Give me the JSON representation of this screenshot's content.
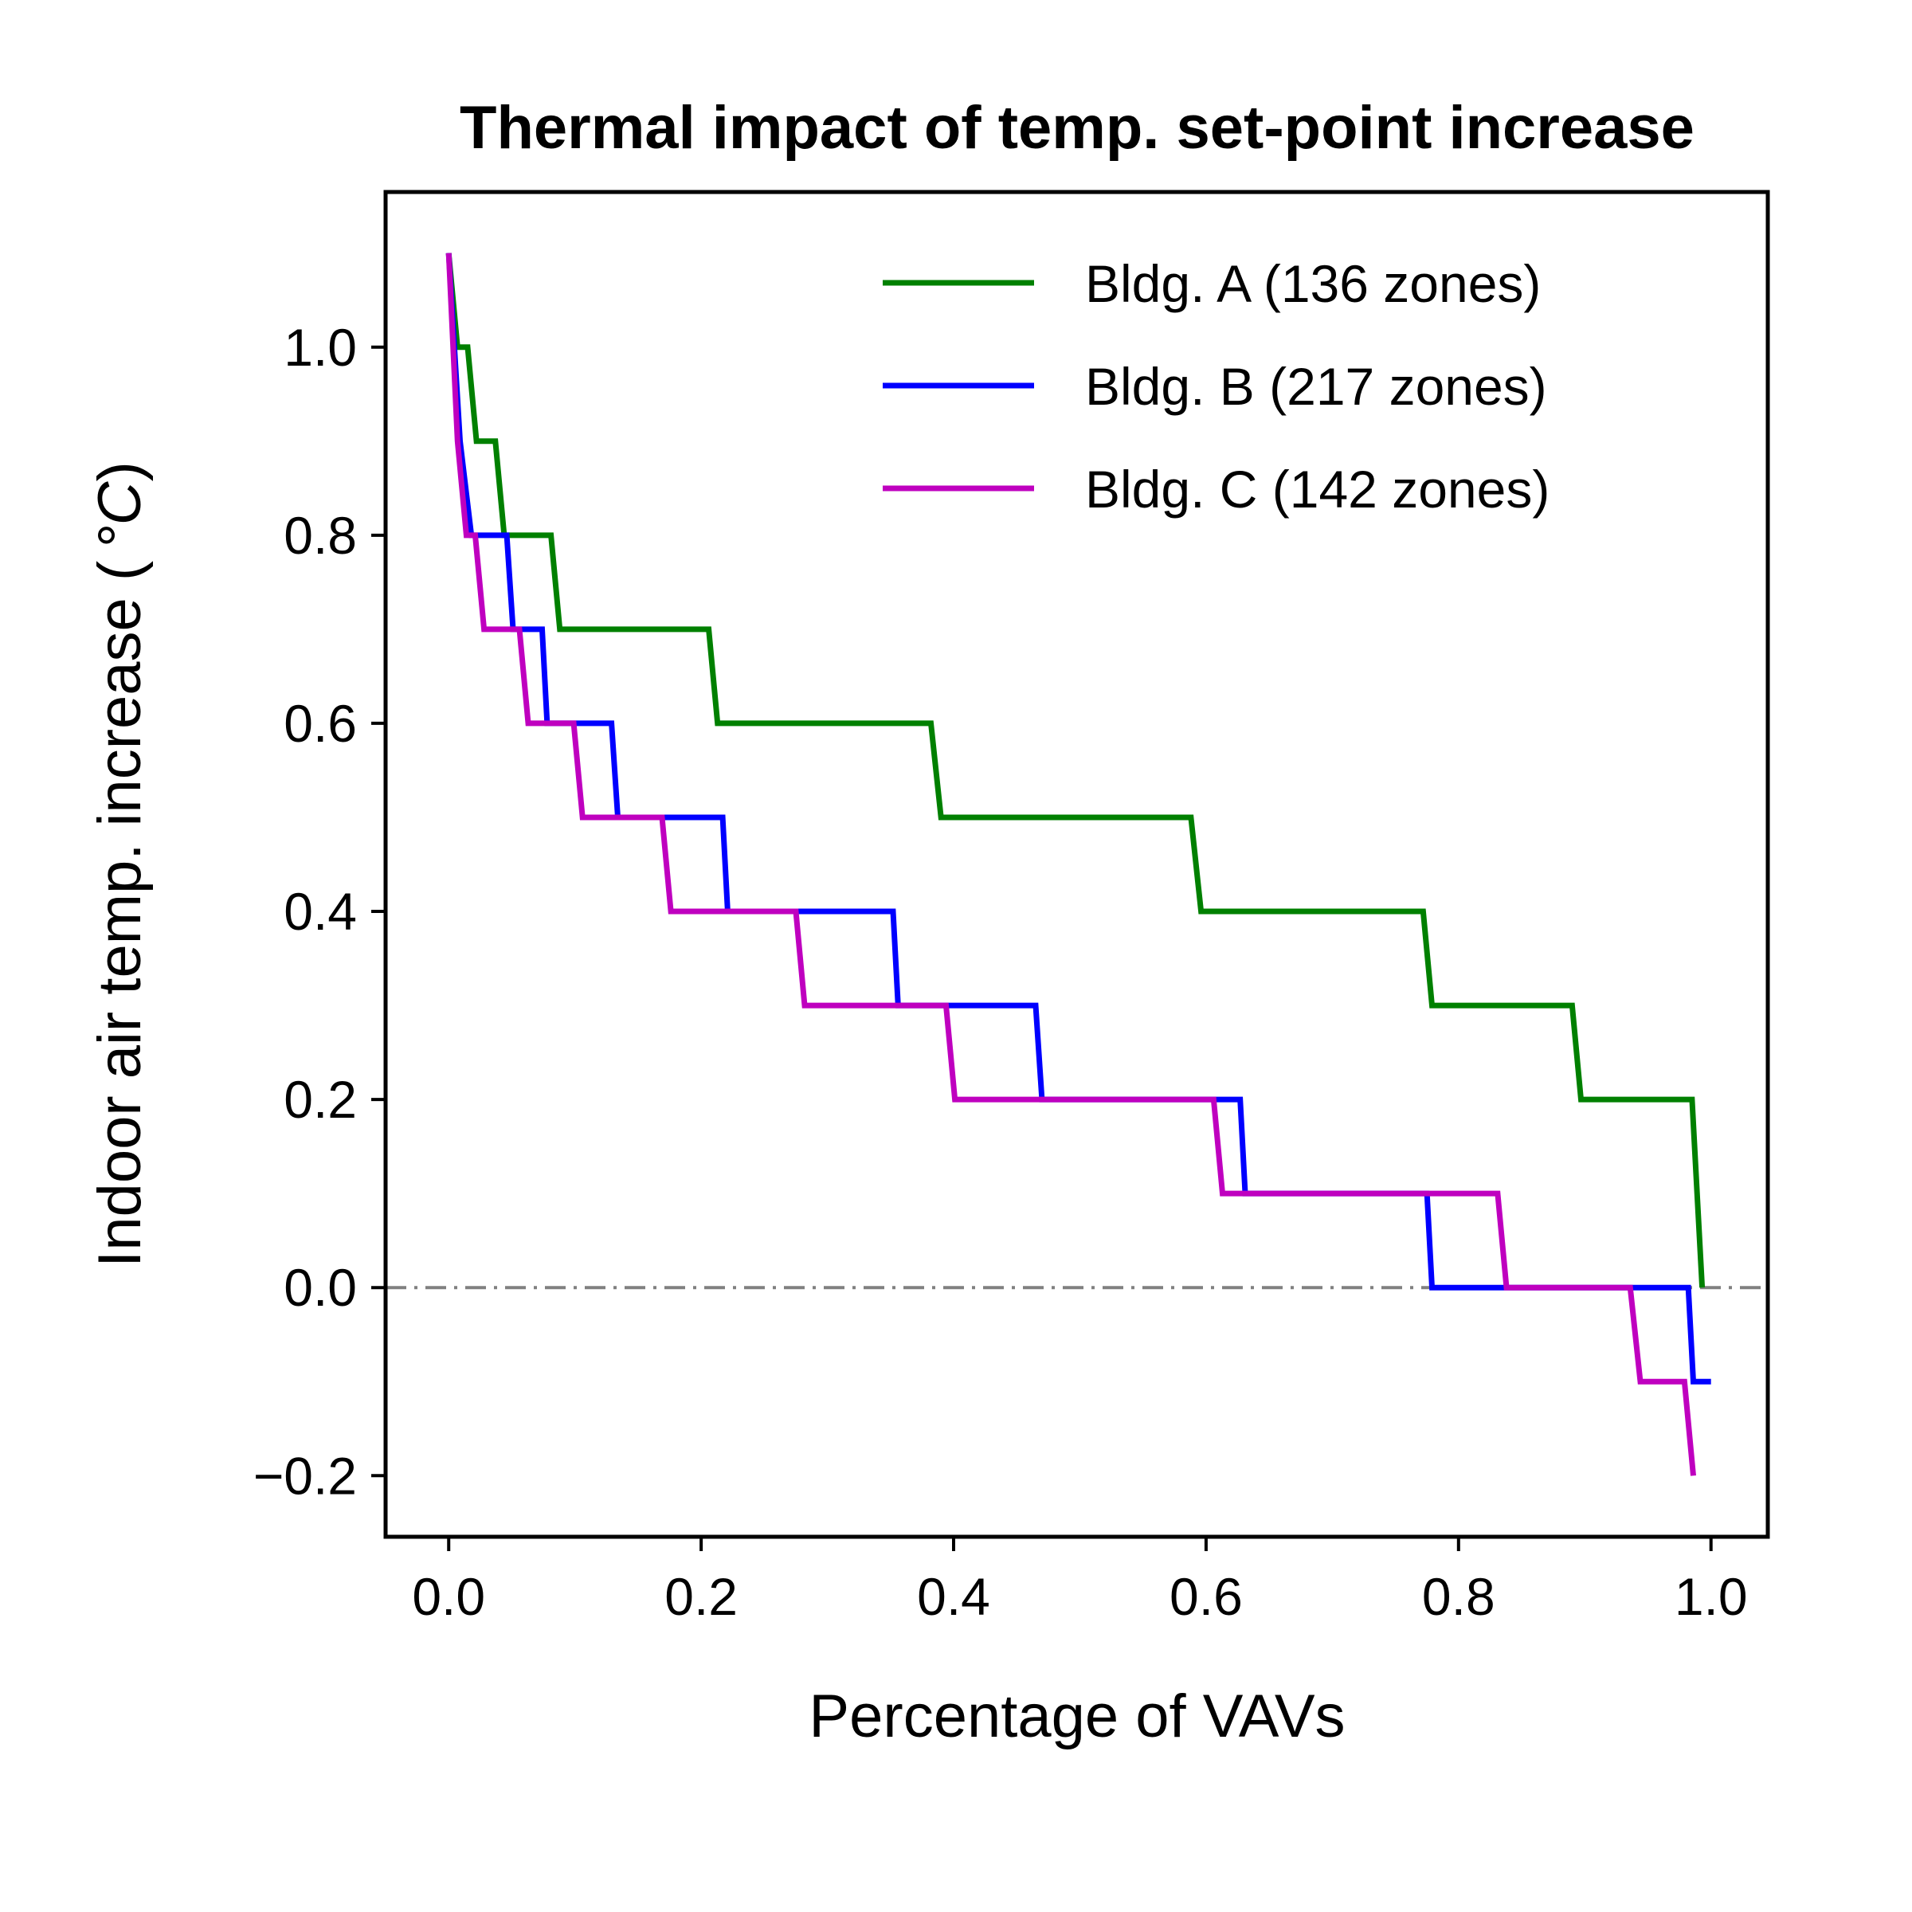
{
  "chart_data": {
    "type": "line",
    "step": true,
    "title": "Thermal impact of temp. set-point increase",
    "xlabel": "Percentage of VAVs",
    "ylabel": "Indoor air temp. increase (",
    "ylabel_unit": "°C",
    "ylabel_close": ")",
    "xlim": [
      -0.05,
      1.045
    ],
    "ylim": [
      -0.265,
      1.165
    ],
    "xticks": [
      0.0,
      0.2,
      0.4,
      0.6,
      0.8,
      1.0
    ],
    "xtick_labels": [
      "0.0",
      "0.2",
      "0.4",
      "0.6",
      "0.8",
      "1.0"
    ],
    "yticks": [
      -0.2,
      0.0,
      0.2,
      0.4,
      0.6,
      0.8,
      1.0
    ],
    "ytick_labels": [
      "−0.2",
      "0.0",
      "0.2",
      "0.4",
      "0.6",
      "0.8",
      "1.0"
    ],
    "reference_line": {
      "y": 0.0,
      "style": "dash-dot",
      "color": "#808080"
    },
    "legend_position": "top-right",
    "series": [
      {
        "name": "Bldg. A (136 zones)",
        "color": "#008000",
        "x": [
          0.0,
          0.007,
          0.015,
          0.022,
          0.037,
          0.044,
          0.081,
          0.088,
          0.206,
          0.213,
          0.382,
          0.39,
          0.588,
          0.596,
          0.772,
          0.779,
          0.89,
          0.897,
          0.985,
          0.993
        ],
        "y": [
          1.1,
          1.0,
          1.0,
          0.9,
          0.9,
          0.8,
          0.8,
          0.7,
          0.7,
          0.6,
          0.6,
          0.5,
          0.5,
          0.4,
          0.4,
          0.3,
          0.3,
          0.2,
          0.2,
          0.0
        ]
      },
      {
        "name": "Bldg. B (217 zones)",
        "color": "#0000ff",
        "x": [
          0.0,
          0.009,
          0.018,
          0.046,
          0.051,
          0.074,
          0.078,
          0.129,
          0.134,
          0.217,
          0.221,
          0.352,
          0.356,
          0.465,
          0.47,
          0.627,
          0.631,
          0.775,
          0.779,
          0.982,
          0.986,
          1.0
        ],
        "y": [
          1.1,
          0.9,
          0.8,
          0.8,
          0.7,
          0.7,
          0.6,
          0.6,
          0.5,
          0.5,
          0.4,
          0.4,
          0.3,
          0.3,
          0.2,
          0.2,
          0.1,
          0.1,
          0.0,
          0.0,
          -0.1,
          -0.1
        ]
      },
      {
        "name": "Bldg. C (142 zones)",
        "color": "#bf00bf",
        "x": [
          0.0,
          0.007,
          0.014,
          0.021,
          0.028,
          0.056,
          0.063,
          0.099,
          0.106,
          0.169,
          0.176,
          0.275,
          0.282,
          0.394,
          0.401,
          0.606,
          0.613,
          0.831,
          0.838,
          0.936,
          0.944,
          0.979,
          0.986
        ],
        "y": [
          1.1,
          0.9,
          0.8,
          0.8,
          0.7,
          0.7,
          0.6,
          0.6,
          0.5,
          0.5,
          0.4,
          0.4,
          0.3,
          0.3,
          0.2,
          0.2,
          0.1,
          0.1,
          0.0,
          0.0,
          -0.1,
          -0.1,
          -0.2
        ]
      }
    ]
  }
}
